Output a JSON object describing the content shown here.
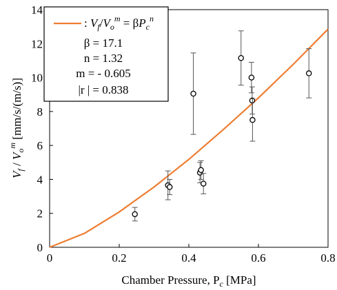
{
  "chart_data": {
    "type": "scatter",
    "xlabel": "Chamber Pressure, P",
    "xlabel_sub": "c",
    "xlabel_unit": " [MPa]",
    "ylabel_unit": " [mm/s/(m/s)]",
    "xlim": [
      0,
      0.8
    ],
    "ylim": [
      0,
      14
    ],
    "x_ticks": [
      "0",
      "0.2",
      "0.4",
      "0.6",
      "0.8"
    ],
    "y_ticks": [
      "0",
      "2",
      "4",
      "6",
      "8",
      "10",
      "12",
      "14"
    ],
    "grid": false,
    "legend_position": "top-left",
    "legend": {
      "beta": "β = 17.1",
      "n": "n = 1.32",
      "m": "m = - 0.605",
      "r": "|r | = 0.838"
    },
    "series": [
      {
        "type": "scatter_errorbar",
        "points": [
          {
            "x": 0.245,
            "y": 1.95,
            "err": 0.4
          },
          {
            "x": 0.34,
            "y": 3.65,
            "err": 0.85
          },
          {
            "x": 0.345,
            "y": 3.55,
            "err": 0.45
          },
          {
            "x": 0.413,
            "y": 9.05,
            "err": 2.4
          },
          {
            "x": 0.432,
            "y": 4.4,
            "err": 0.6
          },
          {
            "x": 0.435,
            "y": 4.55,
            "err": 0.55
          },
          {
            "x": 0.442,
            "y": 3.75,
            "err": 0.6
          },
          {
            "x": 0.55,
            "y": 11.15,
            "err": 1.6
          },
          {
            "x": 0.58,
            "y": 10.0,
            "err": 0.9
          },
          {
            "x": 0.582,
            "y": 8.65,
            "err": 0.8
          },
          {
            "x": 0.583,
            "y": 7.5,
            "err": 1.25
          },
          {
            "x": 0.745,
            "y": 10.25,
            "err": 1.45
          }
        ]
      },
      {
        "type": "line",
        "color": "#ED7D31",
        "points": [
          {
            "x": 0.0,
            "y": 0.0
          },
          {
            "x": 0.1,
            "y": 0.82
          },
          {
            "x": 0.2,
            "y": 2.08
          },
          {
            "x": 0.3,
            "y": 3.55
          },
          {
            "x": 0.4,
            "y": 5.18
          },
          {
            "x": 0.5,
            "y": 6.95
          },
          {
            "x": 0.6,
            "y": 8.8
          },
          {
            "x": 0.7,
            "y": 10.78
          },
          {
            "x": 0.8,
            "y": 12.85
          }
        ]
      }
    ]
  }
}
